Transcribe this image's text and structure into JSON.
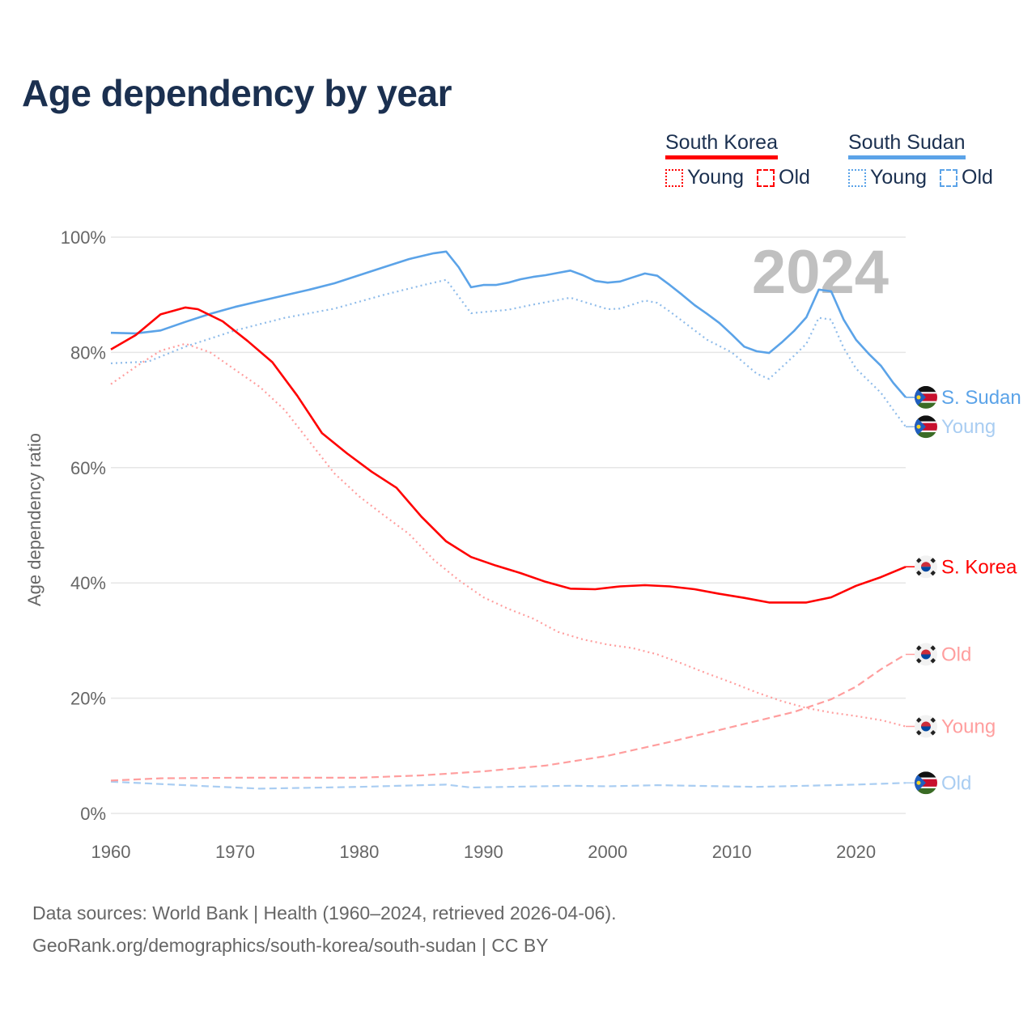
{
  "title": "Age dependency by year",
  "legend": {
    "groups": [
      {
        "name": "South Korea",
        "color": "#ff0000",
        "items": [
          {
            "label": "Young",
            "style": "dotted"
          },
          {
            "label": "Old",
            "style": "dashed"
          }
        ]
      },
      {
        "name": "South Sudan",
        "color": "#5ba3e8",
        "items": [
          {
            "label": "Young",
            "style": "dotted"
          },
          {
            "label": "Old",
            "style": "dashed"
          }
        ]
      }
    ]
  },
  "source": {
    "line1": "Data sources: World Bank | Health (1960–2024, retrieved 2026-04-06).",
    "line2": "GeoRank.org/demographics/south-korea/south-sudan | CC BY"
  },
  "chart_data": {
    "type": "line",
    "title": "Age dependency by year",
    "year_label": "2024",
    "xlabel": "",
    "ylabel": "Age dependency ratio",
    "xlim": [
      1960,
      2024
    ],
    "ylim": [
      0,
      100
    ],
    "x_ticks": [
      "1960",
      "1970",
      "1980",
      "1990",
      "2000",
      "2010",
      "2020"
    ],
    "y_ticks": [
      "0%",
      "20%",
      "40%",
      "60%",
      "80%",
      "100%"
    ],
    "grid": true,
    "series": [
      {
        "name": "South Sudan",
        "end_label": "S. Sudan",
        "country": "ss",
        "color": "#5ba3e8",
        "label_color": "#5ba3e8",
        "style": "solid",
        "x": [
          1960,
          1962,
          1964,
          1966,
          1968,
          1970,
          1972,
          1974,
          1976,
          1978,
          1980,
          1982,
          1984,
          1986,
          1987,
          1988,
          1989,
          1990,
          1991,
          1992,
          1993,
          1994,
          1995,
          1996,
          1997,
          1998,
          1999,
          2000,
          2001,
          2002,
          2003,
          2004,
          2005,
          2006,
          2007,
          2008,
          2009,
          2010,
          2011,
          2012,
          2013,
          2014,
          2015,
          2016,
          2017,
          2018,
          2019,
          2020,
          2021,
          2022,
          2023,
          2024
        ],
        "y": [
          83.4,
          83.3,
          83.8,
          85.3,
          86.7,
          87.9,
          88.9,
          89.9,
          90.9,
          92.0,
          93.4,
          94.8,
          96.2,
          97.2,
          97.5,
          94.8,
          91.3,
          91.7,
          91.7,
          92.1,
          92.7,
          93.1,
          93.4,
          93.8,
          94.2,
          93.4,
          92.4,
          92.1,
          92.3,
          93.0,
          93.7,
          93.3,
          91.7,
          90.0,
          88.2,
          86.7,
          85.1,
          83.1,
          81.0,
          80.2,
          79.9,
          81.7,
          83.7,
          86.1,
          90.9,
          90.6,
          85.7,
          82.2,
          79.8,
          77.7,
          74.7,
          72.2
        ]
      },
      {
        "name": "South Sudan Young",
        "end_label": "Young",
        "country": "ss",
        "color": "#8fbcea",
        "label_color": "#a9cdf2",
        "style": "dotted",
        "x": [
          1960,
          1963,
          1966,
          1970,
          1974,
          1978,
          1982,
          1985,
          1987,
          1989,
          1992,
          1994,
          1997,
          2000,
          2001,
          2003,
          2004,
          2005,
          2008,
          2010,
          2012,
          2013,
          2015,
          2016,
          2017,
          2018,
          2019,
          2020,
          2022,
          2023,
          2024
        ],
        "y": [
          78.1,
          78.4,
          81.0,
          83.8,
          86.0,
          87.6,
          90.0,
          91.6,
          92.6,
          86.8,
          87.4,
          88.3,
          89.5,
          87.5,
          87.6,
          89.0,
          88.6,
          87.1,
          82.2,
          80.0,
          76.3,
          75.4,
          79.4,
          81.5,
          86.0,
          85.7,
          80.8,
          77.2,
          73.0,
          70.0,
          67.1
        ]
      },
      {
        "name": "South Sudan Old",
        "end_label": "Old",
        "country": "ss",
        "color": "#a9cdf2",
        "label_color": "#a9cdf2",
        "style": "dashed",
        "x": [
          1960,
          1965,
          1970,
          1972,
          1980,
          1985,
          1987,
          1989,
          1997,
          2000,
          2004,
          2012,
          2016,
          2020,
          2024
        ],
        "y": [
          5.5,
          5.0,
          4.5,
          4.3,
          4.6,
          4.9,
          5.0,
          4.5,
          4.8,
          4.7,
          4.9,
          4.6,
          4.8,
          5.0,
          5.3
        ]
      },
      {
        "name": "South Korea",
        "end_label": "S. Korea",
        "country": "kr",
        "color": "#ff0000",
        "label_color": "#ff0000",
        "style": "solid",
        "x": [
          1960,
          1962,
          1964,
          1966,
          1967,
          1969,
          1971,
          1973,
          1975,
          1977,
          1979,
          1981,
          1983,
          1985,
          1987,
          1989,
          1991,
          1993,
          1995,
          1997,
          1999,
          2001,
          2003,
          2005,
          2007,
          2009,
          2011,
          2013,
          2016,
          2018,
          2020,
          2022,
          2024
        ],
        "y": [
          80.5,
          83.0,
          86.6,
          87.8,
          87.5,
          85.4,
          82.0,
          78.3,
          72.5,
          66.0,
          62.5,
          59.3,
          56.5,
          51.5,
          47.2,
          44.5,
          43.0,
          41.7,
          40.2,
          39.0,
          38.9,
          39.4,
          39.6,
          39.4,
          38.9,
          38.1,
          37.4,
          36.6,
          36.6,
          37.5,
          39.5,
          41.0,
          42.8
        ]
      },
      {
        "name": "South Korea Old",
        "end_label": "Old",
        "country": "kr",
        "color": "#ff9e9e",
        "label_color": "#ff9e9e",
        "style": "dashed",
        "x": [
          1960,
          1964,
          1970,
          1975,
          1980,
          1985,
          1990,
          1995,
          2000,
          2005,
          2010,
          2015,
          2018,
          2020,
          2022,
          2024
        ],
        "y": [
          5.7,
          6.1,
          6.2,
          6.2,
          6.2,
          6.6,
          7.3,
          8.3,
          10.0,
          12.4,
          15.0,
          17.6,
          19.8,
          22.0,
          25.0,
          27.6
        ]
      },
      {
        "name": "South Korea Young",
        "end_label": "Young",
        "country": "kr",
        "color": "#ff9e9e",
        "label_color": "#ff9e9e",
        "style": "dotted",
        "x": [
          1960,
          1962,
          1964,
          1966,
          1968,
          1970,
          1972,
          1974,
          1976,
          1978,
          1980,
          1982,
          1984,
          1986,
          1988,
          1990,
          1992,
          1994,
          1996,
          1998,
          2000,
          2002,
          2004,
          2006,
          2008,
          2010,
          2012,
          2014,
          2016,
          2018,
          2020,
          2022,
          2024
        ],
        "y": [
          74.5,
          77.5,
          80.3,
          81.5,
          80.0,
          77.0,
          74.0,
          70.0,
          64.5,
          59.0,
          55.0,
          51.7,
          48.5,
          44.0,
          40.5,
          37.5,
          35.5,
          33.8,
          31.5,
          30.2,
          29.3,
          28.7,
          27.6,
          26.0,
          24.3,
          22.7,
          21.0,
          19.5,
          18.3,
          17.5,
          16.9,
          16.2,
          15.1
        ]
      }
    ]
  }
}
